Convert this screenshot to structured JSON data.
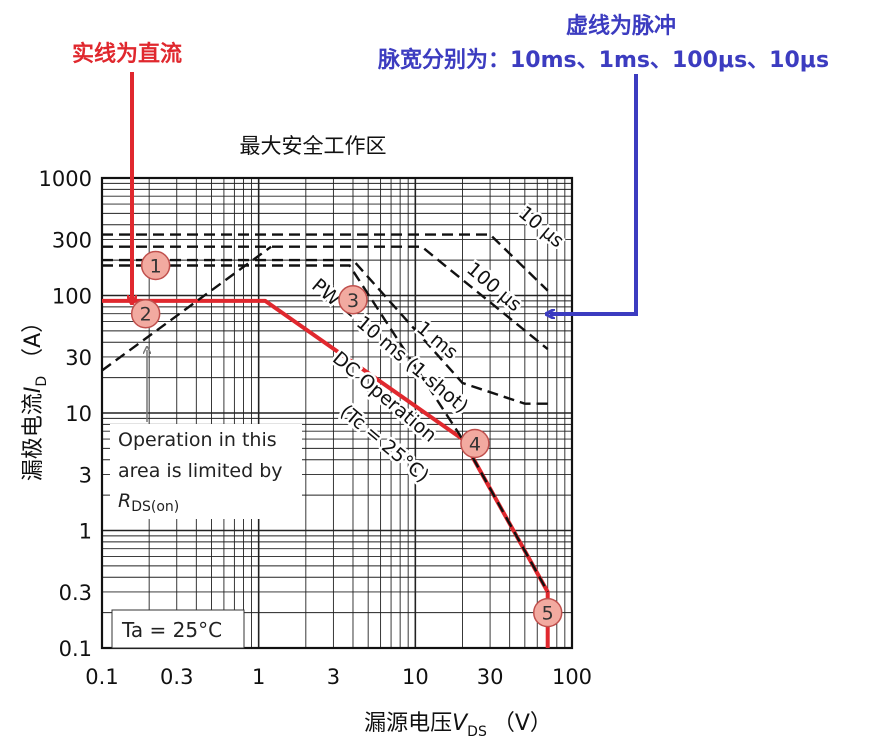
{
  "annotations": {
    "dc_note": "实线为直流",
    "pulse_note_line1": "虚线为脉冲",
    "pulse_note_line2": "脉宽分别为：10ms、1ms、100μs、10μs"
  },
  "colors": {
    "dc_line": "#e0282e",
    "pulse_arrow": "#3c3cc0",
    "marker_fill": "#f2aaa0",
    "marker_stroke": "#c0504d",
    "grid": "#222222"
  },
  "chart_data": {
    "type": "line",
    "title": "最大安全工作区",
    "xlabel": "漏源电压V_DS （V）",
    "ylabel": "漏极电流I_D （A）",
    "xlabel_parts": {
      "prefix": "漏源电压",
      "var": "V",
      "sub": "DS",
      "unit": "（V）"
    },
    "ylabel_parts": {
      "prefix": "漏极电流",
      "var": "I",
      "sub": "D",
      "unit": "（A）"
    },
    "x_scale": "log",
    "y_scale": "log",
    "xlim": [
      0.1,
      100
    ],
    "ylim": [
      0.1,
      1000
    ],
    "grid": true,
    "x_ticks": [
      0.1,
      0.3,
      1,
      3,
      10,
      30,
      100
    ],
    "x_tick_labels": [
      "0.1",
      "0.3",
      "1",
      "3",
      "10",
      "30",
      "100"
    ],
    "y_ticks": [
      0.1,
      0.3,
      1,
      3,
      10,
      30,
      100,
      300,
      1000
    ],
    "y_tick_labels": [
      "0.1",
      "0.3",
      "1",
      "3",
      "10",
      "30",
      "100",
      "300",
      "1000"
    ],
    "series": [
      {
        "name": "DC Operation",
        "style": "solid",
        "points": [
          [
            0.1,
            90
          ],
          [
            1.1,
            90
          ],
          [
            20,
            6
          ],
          [
            70,
            0.3
          ],
          [
            70,
            0.1
          ]
        ]
      },
      {
        "name": "RDS(on) limit",
        "style": "dashed",
        "points": [
          [
            0.1,
            23
          ],
          [
            1.2,
            260
          ]
        ]
      },
      {
        "name": "PW = 10 ms (1 shot)",
        "style": "dashed",
        "points": [
          [
            0.1,
            180
          ],
          [
            3.8,
            180
          ],
          [
            20,
            6
          ],
          [
            70,
            0.3
          ]
        ]
      },
      {
        "name": "1 ms",
        "style": "dashed",
        "points": [
          [
            0.1,
            200
          ],
          [
            4,
            200
          ],
          [
            20,
            18
          ],
          [
            50,
            12
          ],
          [
            70,
            12
          ]
        ]
      },
      {
        "name": "100 µs",
        "style": "dashed",
        "points": [
          [
            0.1,
            260
          ],
          [
            11,
            260
          ],
          [
            70,
            35
          ]
        ]
      },
      {
        "name": "10 µs",
        "style": "dashed",
        "points": [
          [
            0.1,
            330
          ],
          [
            30,
            330
          ],
          [
            70,
            110
          ]
        ]
      }
    ],
    "curve_labels": {
      "pw": "PW = 10 ms (1 shot)",
      "ms1": "1 ms",
      "us100": "100 µs",
      "us10": "10 µs",
      "dc": "DC Operation",
      "tc": "(Tc = 25°C)"
    },
    "rds_note": {
      "line1": "Operation in this",
      "line2": "area is limited by",
      "var": "R",
      "sub": "DS(on)"
    },
    "ta_label": "Ta = 25°C",
    "markers": [
      {
        "label": "1",
        "x": 0.22,
        "y": 180
      },
      {
        "label": "2",
        "x": 0.19,
        "y": 70
      },
      {
        "label": "3",
        "x": 4.0,
        "y": 92
      },
      {
        "label": "4",
        "x": 24,
        "y": 5.5
      },
      {
        "label": "5",
        "x": 70,
        "y": 0.2
      }
    ]
  }
}
